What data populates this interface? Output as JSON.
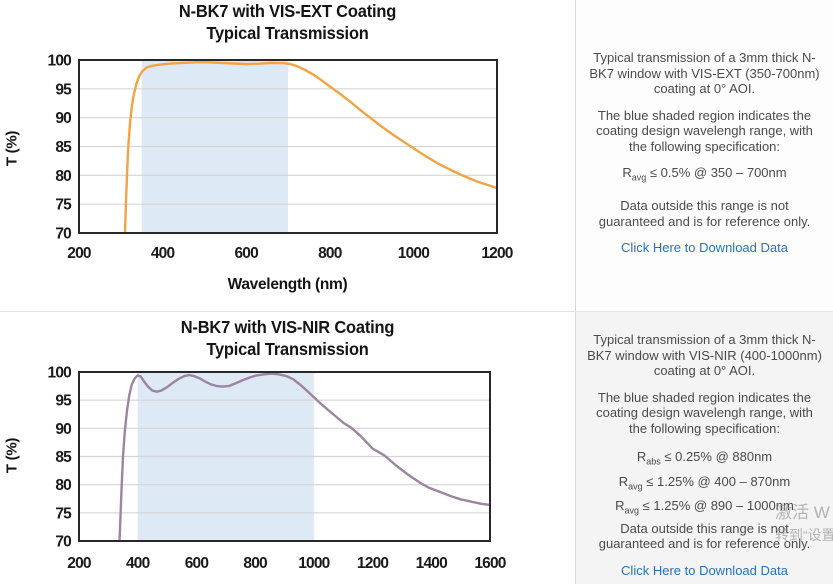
{
  "chart_data": [
    {
      "type": "line",
      "title": "N-BK7 with VIS-EXT Coating",
      "subtitle": "Typical Transmission",
      "xlabel": "Wavelength (nm)",
      "ylabel": "T (%)",
      "xlim": [
        200,
        1200
      ],
      "xticks": [
        200,
        400,
        600,
        800,
        1000,
        1200
      ],
      "ylim": [
        70,
        100
      ],
      "yticks": [
        70,
        75,
        80,
        85,
        90,
        95,
        100
      ],
      "grid": "horizontal",
      "shaded_region": [
        350,
        700
      ],
      "shade_color": "#dde9f4",
      "line_color": "#f2a444",
      "series": [
        {
          "name": "Typical Transmission",
          "x": [
            310,
            312,
            315,
            318,
            322,
            326,
            331,
            337,
            344,
            352,
            362,
            375,
            395,
            420,
            450,
            480,
            510,
            540,
            570,
            600,
            630,
            660,
            690,
            705,
            720,
            740,
            760,
            780,
            800,
            825,
            850,
            875,
            900,
            925,
            950,
            975,
            1000,
            1030,
            1060,
            1090,
            1120,
            1150,
            1175,
            1200
          ],
          "y": [
            70,
            74.5,
            80.5,
            85,
            89,
            91.8,
            94,
            95.8,
            97.2,
            98.1,
            98.7,
            99.0,
            99.2,
            99.4,
            99.5,
            99.6,
            99.6,
            99.5,
            99.4,
            99.3,
            99.35,
            99.5,
            99.45,
            99.3,
            99.0,
            98.3,
            97.5,
            96.5,
            95.4,
            94.1,
            92.7,
            91.2,
            89.8,
            88.4,
            87.1,
            85.9,
            84.7,
            83.3,
            82.0,
            80.9,
            79.9,
            79.0,
            78.4,
            77.8
          ]
        }
      ]
    },
    {
      "type": "line",
      "title": "N-BK7 with VIS-NIR Coating",
      "subtitle": "Typical Transmission",
      "xlabel": "",
      "ylabel": "T (%)",
      "xlim": [
        200,
        1600
      ],
      "xticks": [
        200,
        400,
        600,
        800,
        1000,
        1200,
        1400,
        1600
      ],
      "ylim": [
        70,
        100
      ],
      "yticks": [
        70,
        75,
        80,
        85,
        90,
        95,
        100
      ],
      "grid": "horizontal",
      "shaded_region": [
        400,
        1000
      ],
      "shade_color": "#dde9f4",
      "line_color": "#9d84a0",
      "series": [
        {
          "name": "Typical Transmission",
          "x": [
            338,
            341,
            345,
            350,
            356,
            363,
            371,
            380,
            390,
            400,
            410,
            422,
            435,
            450,
            465,
            480,
            500,
            520,
            540,
            560,
            575,
            590,
            610,
            630,
            650,
            670,
            690,
            710,
            730,
            755,
            780,
            805,
            830,
            855,
            880,
            905,
            930,
            955,
            980,
            1000,
            1025,
            1050,
            1075,
            1100,
            1130,
            1160,
            1200,
            1240,
            1280,
            1320,
            1360,
            1390,
            1410,
            1440,
            1470,
            1500,
            1535,
            1570,
            1600
          ],
          "y": [
            70,
            74,
            79.5,
            85,
            89.5,
            93,
            95.8,
            97.8,
            98.9,
            99.4,
            99.2,
            98.3,
            97.4,
            96.7,
            96.5,
            96.7,
            97.3,
            98.1,
            98.8,
            99.3,
            99.45,
            99.3,
            98.9,
            98.3,
            97.8,
            97.5,
            97.4,
            97.5,
            97.9,
            98.5,
            99.0,
            99.4,
            99.6,
            99.7,
            99.6,
            99.3,
            98.7,
            97.7,
            96.5,
            95.5,
            94.3,
            93.2,
            92.1,
            91.0,
            90.0,
            88.6,
            86.4,
            85.2,
            83.4,
            81.8,
            80.4,
            79.5,
            79.1,
            78.5,
            77.9,
            77.4,
            77.0,
            76.6,
            76.4
          ]
        }
      ]
    }
  ],
  "panels": [
    {
      "description": "Typical transmission of a 3mm thick N-BK7 window with VIS-EXT (350-700nm) coating at 0° AOI.",
      "shaded_note": "The blue shaded region indicates the coating design wavelengh range, with the following specification:",
      "specs": [
        {
          "prefix": "R",
          "sub": "avg",
          "rest": " ≤ 0.5% @ 350 – 700nm"
        }
      ],
      "disclaimer": "Data outside this range is not guaranteed and is for reference only.",
      "link_label": "Click Here to Download Data"
    },
    {
      "description": "Typical transmission of a 3mm thick N-BK7 window with VIS-NIR (400-1000nm) coating at 0° AOI.",
      "shaded_note": "The blue shaded region indicates the coating design wavelengh range, with the following specification:",
      "specs": [
        {
          "prefix": "R",
          "sub": "abs",
          "rest": " ≤ 0.25% @ 880nm"
        },
        {
          "prefix": "R",
          "sub": "avg",
          "rest": " ≤ 1.25% @ 400 – 870nm"
        },
        {
          "prefix": "R",
          "sub": "avg",
          "rest": " ≤ 1.25% @ 890 – 1000nm"
        }
      ],
      "disclaimer": "Data outside this range is not guaranteed and is for reference only.",
      "link_label": "Click Here to Download Data"
    }
  ],
  "watermark": {
    "line1": "激活 W",
    "line2": "转到“设置"
  },
  "colors": {
    "link": "#2173c8",
    "shade": "#dde9f4",
    "vis_ext_line": "#f2a444",
    "vis_nir_line": "#9d84a0",
    "grid": "#d5d5d5",
    "plot_border": "#282828"
  }
}
